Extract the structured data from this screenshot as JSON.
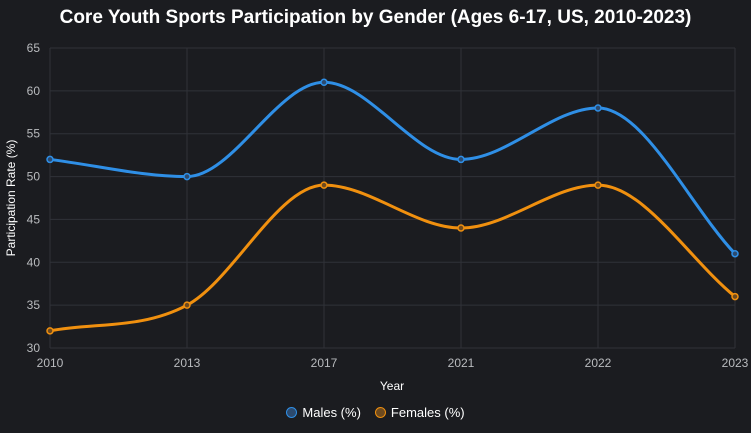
{
  "chart_data": {
    "type": "line",
    "title": "Core Youth Sports Participation by Gender (Ages 6-17, US, 2010-2023)",
    "xlabel": "Year",
    "ylabel": "Participation Rate (%)",
    "categories": [
      "2010",
      "2013",
      "2017",
      "2021",
      "2022",
      "2023"
    ],
    "ylim": [
      30,
      65
    ],
    "yticks": [
      30,
      35,
      40,
      45,
      50,
      55,
      60,
      65
    ],
    "grid": true,
    "legend_position": "bottom",
    "series": [
      {
        "name": "Males (%)",
        "color": "#2f8fe6",
        "fill": "#2c4a6e",
        "values": [
          52,
          50,
          61,
          52,
          58,
          41
        ]
      },
      {
        "name": "Females (%)",
        "color": "#f0900f",
        "fill": "#6e4a1e",
        "values": [
          32,
          35,
          49,
          44,
          49,
          36
        ]
      }
    ]
  }
}
